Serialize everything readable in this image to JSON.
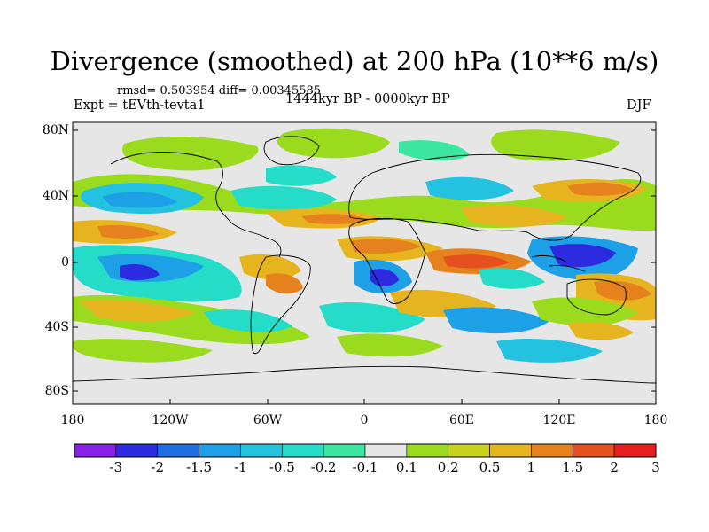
{
  "title": "Divergence (smoothed) at 200 hPa (10**6 m/s)",
  "stats": "rmsd= 0.503954 diff= 0.00345585",
  "experiment": "Expt = tEVth-tevta1",
  "period": "1444kyr BP - 0000kyr BP",
  "season": "DJF",
  "y_ticks": [
    "80N",
    "40N",
    "0",
    "40S",
    "80S"
  ],
  "x_ticks": [
    "180",
    "120W",
    "60W",
    "0",
    "60E",
    "120E",
    "180"
  ],
  "colorbar": {
    "labels": [
      "-3",
      "-2",
      "-1.5",
      "-1",
      "-0.5",
      "-0.2",
      "-0.1",
      "0.1",
      "0.2",
      "0.5",
      "1",
      "1.5",
      "2",
      "3"
    ],
    "colors": [
      "#8a1fe6",
      "#2d2be0",
      "#1f6fe0",
      "#1ea0e6",
      "#23c2e0",
      "#24dcc8",
      "#3de6a0",
      "#e6e6e6",
      "#9bdb1e",
      "#c8d21e",
      "#e6b41e",
      "#e6821e",
      "#e6501e",
      "#e61e1e"
    ]
  }
}
